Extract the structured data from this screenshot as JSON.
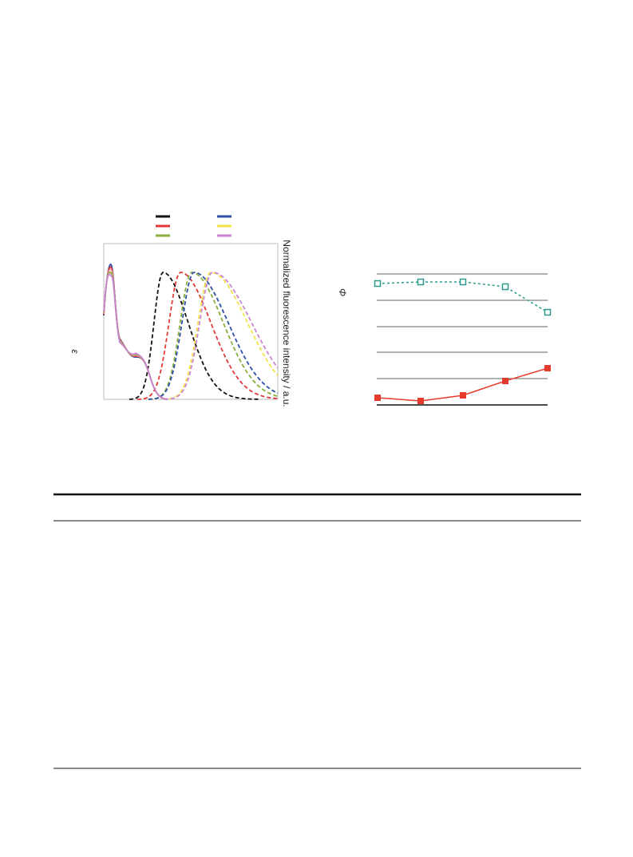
{
  "figure_left": {
    "y_label": "ε",
    "y2_label": "Normalized fluorescence intensity / a.u."
  },
  "figure_right": {
    "y_label": "Φ"
  }
}
